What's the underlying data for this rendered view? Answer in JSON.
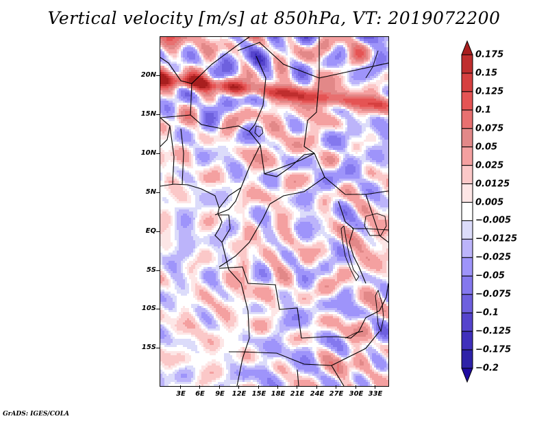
{
  "chart_data": {
    "type": "heatmap",
    "title": "Vertical velocity [m/s] at 850hPa, VT: 2019072200",
    "variable": "Vertical velocity",
    "units": "m/s",
    "level": "850hPa",
    "valid_time": "2019072200",
    "xlabel": "",
    "ylabel": "",
    "x_range_deg_east": [
      0,
      35
    ],
    "y_range_deg_north": [
      -19,
      25
    ],
    "x_ticks": [
      "3E",
      "6E",
      "9E",
      "12E",
      "15E",
      "18E",
      "21E",
      "24E",
      "27E",
      "30E",
      "33E"
    ],
    "x_tick_values": [
      3,
      6,
      9,
      12,
      15,
      18,
      21,
      24,
      27,
      30,
      33
    ],
    "y_ticks": [
      "20N",
      "15N",
      "10N",
      "5N",
      "EQ",
      "5S",
      "10S",
      "15S"
    ],
    "y_tick_values": [
      20,
      15,
      10,
      5,
      0,
      -5,
      -10,
      -15
    ],
    "colorbar": {
      "levels": [
        "0.175",
        "0.15",
        "0.125",
        "0.1",
        "0.075",
        "0.05",
        "0.025",
        "0.0125",
        "0.005",
        "-0.005",
        "-0.0125",
        "-0.025",
        "-0.05",
        "-0.075",
        "-0.1",
        "-0.125",
        "-0.175",
        "-0.2"
      ],
      "colors": [
        "#a81e1e",
        "#bf2e2e",
        "#d64040",
        "#e55454",
        "#e87070",
        "#e28888",
        "#f4a0a0",
        "#fbc8c8",
        "#fde6e6",
        "#ffffff",
        "#dcdcfa",
        "#bcb4fa",
        "#9e94fa",
        "#8478ee",
        "#6e60de",
        "#5544cc",
        "#4030bc",
        "#2e22a8",
        "#1e0aa0"
      ],
      "extend": "both",
      "placement": "right"
    },
    "grid": false,
    "legend": "colorbar right",
    "features": [
      "country borders",
      "coastlines",
      "lakes"
    ]
  },
  "footer": {
    "credit": "GrADS: IGES/COLA"
  }
}
